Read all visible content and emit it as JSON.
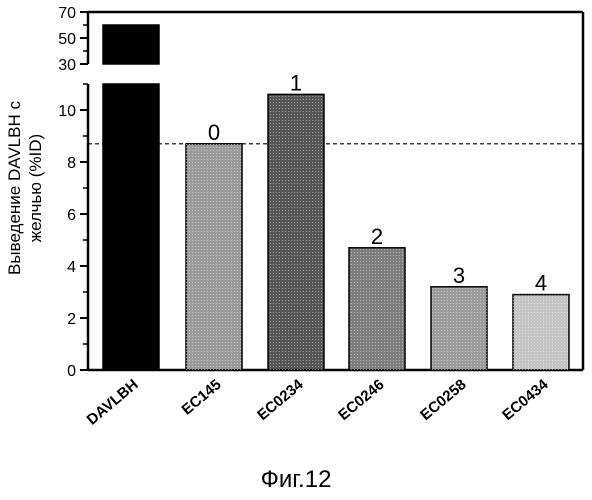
{
  "chart_data": {
    "type": "bar",
    "categories": [
      "DAVLBH",
      "EC145",
      "EC0234",
      "EC0246",
      "EC0258",
      "EC0434"
    ],
    "values": [
      60,
      8.7,
      10.6,
      4.7,
      3.2,
      2.9
    ],
    "bar_labels": [
      "",
      "0",
      "1",
      "2",
      "3",
      "4"
    ],
    "ylabel_lines": [
      "Выведение DAVLBH с",
      "желчью (%ID)"
    ],
    "y_lower_range": [
      0,
      11
    ],
    "y_lower_ticks": [
      "0",
      "2",
      "4",
      "6",
      "8",
      "10"
    ],
    "y_upper_range": [
      30,
      70
    ],
    "y_upper_ticks": [
      "30",
      "50",
      "70"
    ],
    "reference_line": 8.7,
    "bar_colors": [
      "#000000",
      "#9a9a9a",
      "#555555",
      "#7d7d7d",
      "#9b9b9b",
      "#c4c4c4"
    ]
  },
  "caption": "Фиг.12"
}
